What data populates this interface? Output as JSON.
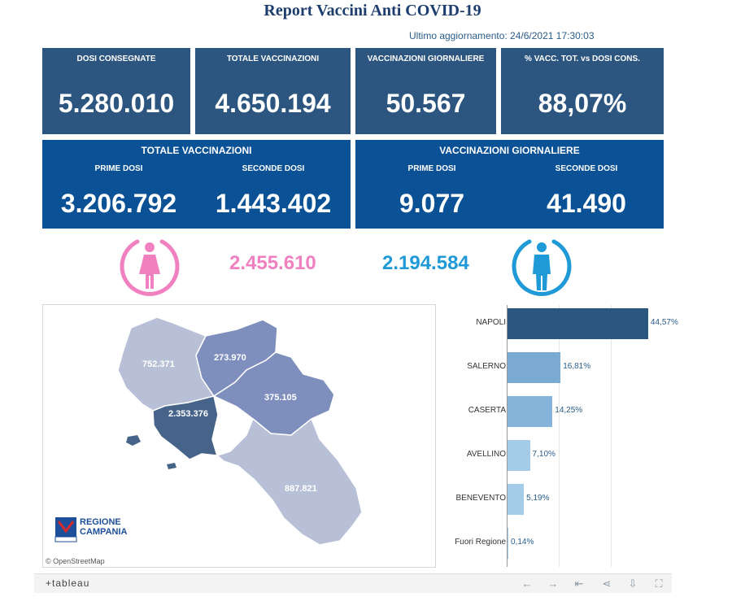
{
  "header": {
    "title": "Report Vaccini Anti COVID-19",
    "updated": "Ultimo aggiornamento: 24/6/2021 17:30:03"
  },
  "kpis": [
    {
      "label": "DOSI CONSEGNATE",
      "value": "5.280.010"
    },
    {
      "label": "TOTALE VACCINAZIONI",
      "value": "4.650.194"
    },
    {
      "label": "VACCINAZIONI GIORNALIERE",
      "value": "50.567"
    },
    {
      "label": "% VACC. TOT. vs DOSI CONS.",
      "value": "88,07%"
    }
  ],
  "totale": {
    "heading": "TOTALE VACCINAZIONI",
    "prime_label": "PRIME DOSI",
    "prime_value": "3.206.792",
    "seconde_label": "SECONDE DOSI",
    "seconde_value": "1.443.402"
  },
  "giornaliere": {
    "heading": "VACCINAZIONI GIORNALIERE",
    "prime_label": "PRIME DOSI",
    "prime_value": "9.077",
    "seconde_label": "SECONDE DOSI",
    "seconde_value": "41.490"
  },
  "gender": {
    "female_value": "2.455.610",
    "female_color": "#f080bf",
    "female_icon": "female-icon",
    "male_value": "2.194.584",
    "male_color": "#1f9ad6",
    "male_icon": "male-icon"
  },
  "map": {
    "labels": {
      "caserta": "752.371",
      "benevento": "273.970",
      "avellino": "375.105",
      "napoli": "2.353.376",
      "salerno": "887.821"
    },
    "logo_line1": "REGIONE",
    "logo_line2": "CAMPANIA",
    "attribution": "© OpenStreetMap"
  },
  "chart_data": {
    "type": "bar",
    "orientation": "horizontal",
    "categories": [
      "NAPOLI",
      "SALERNO",
      "CASERTA",
      "AVELLINO",
      "BENEVENTO",
      "Fuori Regione"
    ],
    "values": [
      44.57,
      16.81,
      14.25,
      7.1,
      5.19,
      0.14
    ],
    "labels": [
      "44,57%",
      "16,81%",
      "14,25%",
      "7,10%",
      "5,19%",
      "0,14%"
    ],
    "colors": [
      "#2c5680",
      "#7aa9d1",
      "#86b3da",
      "#a4cbe8",
      "#a4cbe8",
      "#a4cbe8"
    ],
    "xlim": [
      0,
      50
    ]
  },
  "toolbar": {
    "logo": "+tableau",
    "icons": [
      "undo-icon",
      "redo-icon",
      "revert-icon",
      "share-icon",
      "download-icon",
      "fullscreen-icon"
    ]
  }
}
